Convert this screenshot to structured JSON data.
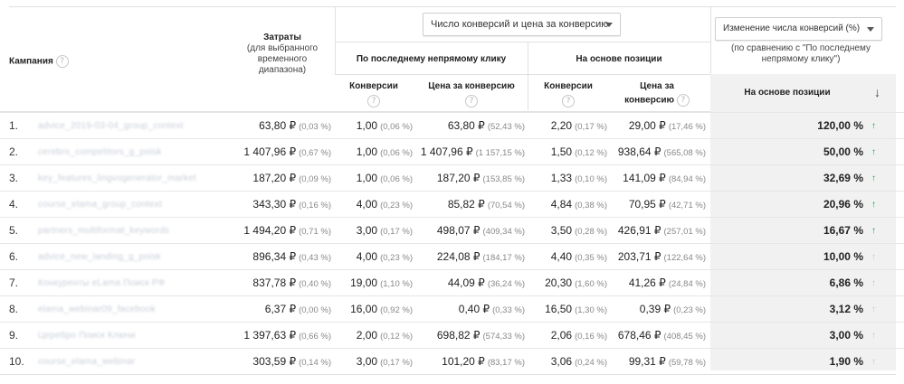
{
  "header": {
    "campaign_label": "Кампания",
    "cost_title": "Затраты",
    "cost_subtitle_1": "(для выбранного",
    "cost_subtitle_2": "временного",
    "cost_subtitle_3": "диапазона)",
    "metric_dropdown": "Число конверсий и цена за конверсию",
    "last_click_label": "По последнему непрямому клику",
    "position_label": "На основе позиции",
    "conversions_label": "Конверсии",
    "cpa_label": "Цена за конверсию",
    "cpa_label_1": "Цена за",
    "cpa_label_2": "конверсию",
    "change_dropdown": "Изменение числа конверсий (%)",
    "comparison_note_1": "(по сравнению с \"По последнему",
    "comparison_note_2": "непрямому клику\")",
    "change_position_label": "На основе позиции"
  },
  "rows": [
    {
      "idx": "1.",
      "name": "advice_2019-03-04_group_context",
      "cost": "63,80 ₽",
      "cost_pct": "(0,03 %)",
      "lc_conv": "1,00",
      "lc_conv_pct": "(0,06 %)",
      "lc_cpa": "63,80 ₽",
      "lc_cpa_pct": "(52,43 %)",
      "pb_conv": "2,20",
      "pb_conv_pct": "(0,17 %)",
      "pb_cpa": "29,00 ₽",
      "pb_cpa_pct": "(17,46 %)",
      "change": "120,00 %",
      "trend": "up"
    },
    {
      "idx": "2.",
      "name": "cerebro_competitors_g_poisk",
      "cost": "1 407,96 ₽",
      "cost_pct": "(0,67 %)",
      "lc_conv": "1,00",
      "lc_conv_pct": "(0,06 %)",
      "lc_cpa": "1 407,96 ₽",
      "lc_cpa_pct": "(1 157,15 %)",
      "pb_conv": "1,50",
      "pb_conv_pct": "(0,12 %)",
      "pb_cpa": "938,64 ₽",
      "pb_cpa_pct": "(565,08 %)",
      "change": "50,00 %",
      "trend": "up"
    },
    {
      "idx": "3.",
      "name": "key_features_lingvogenerator_market",
      "cost": "187,20 ₽",
      "cost_pct": "(0,09 %)",
      "lc_conv": "1,00",
      "lc_conv_pct": "(0,06 %)",
      "lc_cpa": "187,20 ₽",
      "lc_cpa_pct": "(153,85 %)",
      "pb_conv": "1,33",
      "pb_conv_pct": "(0,10 %)",
      "pb_cpa": "141,09 ₽",
      "pb_cpa_pct": "(84,94 %)",
      "change": "32,69 %",
      "trend": "up"
    },
    {
      "idx": "4.",
      "name": "course_elama_group_context",
      "cost": "343,30 ₽",
      "cost_pct": "(0,16 %)",
      "lc_conv": "4,00",
      "lc_conv_pct": "(0,23 %)",
      "lc_cpa": "85,82 ₽",
      "lc_cpa_pct": "(70,54 %)",
      "pb_conv": "4,84",
      "pb_conv_pct": "(0,38 %)",
      "pb_cpa": "70,95 ₽",
      "pb_cpa_pct": "(42,71 %)",
      "change": "20,96 %",
      "trend": "up"
    },
    {
      "idx": "5.",
      "name": "partners_multiformat_keywords",
      "cost": "1 494,20 ₽",
      "cost_pct": "(0,71 %)",
      "lc_conv": "3,00",
      "lc_conv_pct": "(0,17 %)",
      "lc_cpa": "498,07 ₽",
      "lc_cpa_pct": "(409,34 %)",
      "pb_conv": "3,50",
      "pb_conv_pct": "(0,28 %)",
      "pb_cpa": "426,91 ₽",
      "pb_cpa_pct": "(257,01 %)",
      "change": "16,67 %",
      "trend": "up"
    },
    {
      "idx": "6.",
      "name": "advice_new_landing_g_poisk",
      "cost": "896,34 ₽",
      "cost_pct": "(0,43 %)",
      "lc_conv": "4,00",
      "lc_conv_pct": "(0,23 %)",
      "lc_cpa": "224,08 ₽",
      "lc_cpa_pct": "(184,17 %)",
      "pb_conv": "4,40",
      "pb_conv_pct": "(0,35 %)",
      "pb_cpa": "203,71 ₽",
      "pb_cpa_pct": "(122,64 %)",
      "change": "10,00 %",
      "trend": "flat"
    },
    {
      "idx": "7.",
      "name": "Конкуренты eLama Поиск РФ",
      "cost": "837,78 ₽",
      "cost_pct": "(0,40 %)",
      "lc_conv": "19,00",
      "lc_conv_pct": "(1,10 %)",
      "lc_cpa": "44,09 ₽",
      "lc_cpa_pct": "(36,24 %)",
      "pb_conv": "20,30",
      "pb_conv_pct": "(1,60 %)",
      "pb_cpa": "41,26 ₽",
      "pb_cpa_pct": "(24,84 %)",
      "change": "6,86 %",
      "trend": "flat"
    },
    {
      "idx": "8.",
      "name": "elama_webinar09_facebook",
      "cost": "6,37 ₽",
      "cost_pct": "(0,00 %)",
      "lc_conv": "16,00",
      "lc_conv_pct": "(0,92 %)",
      "lc_cpa": "0,40 ₽",
      "lc_cpa_pct": "(0,33 %)",
      "pb_conv": "16,50",
      "pb_conv_pct": "(1,30 %)",
      "pb_cpa": "0,39 ₽",
      "pb_cpa_pct": "(0,23 %)",
      "change": "3,12 %",
      "trend": "flat"
    },
    {
      "idx": "9.",
      "name": "Церебро Поиск Ключи",
      "cost": "1 397,63 ₽",
      "cost_pct": "(0,66 %)",
      "lc_conv": "2,00",
      "lc_conv_pct": "(0,12 %)",
      "lc_cpa": "698,82 ₽",
      "lc_cpa_pct": "(574,33 %)",
      "pb_conv": "2,06",
      "pb_conv_pct": "(0,16 %)",
      "pb_cpa": "678,46 ₽",
      "pb_cpa_pct": "(408,45 %)",
      "change": "3,00 %",
      "trend": "flat"
    },
    {
      "idx": "10.",
      "name": "course_elama_webinar",
      "cost": "303,59 ₽",
      "cost_pct": "(0,14 %)",
      "lc_conv": "3,00",
      "lc_conv_pct": "(0,17 %)",
      "lc_cpa": "101,20 ₽",
      "lc_cpa_pct": "(83,17 %)",
      "pb_conv": "3,06",
      "pb_conv_pct": "(0,24 %)",
      "pb_cpa": "99,31 ₽",
      "pb_cpa_pct": "(59,78 %)",
      "change": "1,90 %",
      "trend": "flat"
    }
  ],
  "colors": {
    "trend_up": "#1e9e48",
    "trend_flat": "#c6c6c6",
    "highlight_column": "#f1f1f1"
  },
  "icons": {
    "help": "question-circle-icon",
    "sort": "arrow-down-icon",
    "trend_up": "arrow-up-icon"
  }
}
